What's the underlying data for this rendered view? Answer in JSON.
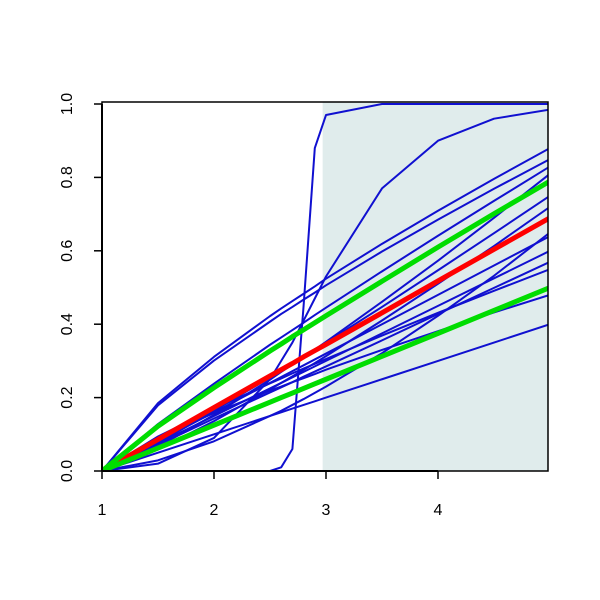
{
  "chart_data": {
    "type": "line",
    "x": [
      1,
      1.5,
      2,
      2.5,
      2.6,
      2.7,
      2.8,
      2.9,
      3,
      3.5,
      4,
      4.5,
      5
    ],
    "xlim": [
      1,
      5
    ],
    "xticks": [
      1,
      2,
      3,
      4
    ],
    "ylim": [
      0,
      1
    ],
    "yticks": [
      {
        "value": 0,
        "label": "0.0"
      },
      0.2,
      0.4,
      0.6,
      0.8,
      {
        "value": 1,
        "label": "1.0"
      }
    ],
    "shade": {
      "xlim": [
        2.97,
        5
      ],
      "color": "#e0ecec"
    },
    "series": [
      {
        "color": "#1010d0",
        "width": 2,
        "values": [
          0,
          0,
          0,
          0,
          0.01,
          0.06,
          0.45,
          0.88,
          0.97,
          1,
          1,
          1,
          1
        ]
      },
      {
        "color": "#1010d0",
        "width": 2,
        "values": [
          0,
          0.02,
          0.09,
          0.25,
          0.3,
          0.35,
          0.41,
          0.47,
          0.53,
          0.77,
          0.9,
          0.96,
          0.985
        ]
      },
      {
        "color": "#1010d0",
        "width": 2,
        "values": [
          0,
          0.185,
          0.311,
          0.422,
          0.443,
          0.463,
          0.483,
          0.503,
          0.524,
          0.619,
          0.709,
          0.796,
          0.88
        ]
      },
      {
        "color": "#1010d0",
        "width": 2,
        "values": [
          0,
          0.179,
          0.301,
          0.407,
          0.428,
          0.447,
          0.467,
          0.486,
          0.506,
          0.598,
          0.685,
          0.769,
          0.85
        ]
      },
      {
        "color": "#1010d0",
        "width": 2,
        "values": [
          0,
          0.128,
          0.238,
          0.344,
          0.364,
          0.384,
          0.404,
          0.425,
          0.445,
          0.544,
          0.641,
          0.736,
          0.83
        ]
      },
      {
        "color": "#1010d0",
        "width": 2,
        "values": [
          0,
          0.066,
          0.153,
          0.249,
          0.27,
          0.29,
          0.311,
          0.331,
          0.352,
          0.461,
          0.573,
          0.69,
          0.81
        ]
      },
      {
        "color": "#1010d0",
        "width": 2,
        "values": [
          0,
          0.076,
          0.164,
          0.255,
          0.274,
          0.293,
          0.311,
          0.331,
          0.35,
          0.447,
          0.547,
          0.648,
          0.75
        ]
      },
      {
        "color": "#1010d0",
        "width": 2,
        "values": [
          0,
          0.059,
          0.136,
          0.222,
          0.24,
          0.258,
          0.276,
          0.294,
          0.313,
          0.41,
          0.51,
          0.613,
          0.72
        ]
      },
      {
        "color": "#1010d0",
        "width": 2,
        "values": [
          0,
          0.029,
          0.081,
          0.15,
          0.164,
          0.18,
          0.196,
          0.213,
          0.23,
          0.321,
          0.423,
          0.532,
          0.65
        ]
      },
      {
        "color": "#1010d0",
        "width": 2,
        "values": [
          0,
          0.08,
          0.16,
          0.24,
          0.256,
          0.272,
          0.288,
          0.304,
          0.32,
          0.4,
          0.48,
          0.56,
          0.64
        ]
      },
      {
        "color": "#1010d0",
        "width": 2,
        "values": [
          0,
          0.075,
          0.15,
          0.225,
          0.24,
          0.255,
          0.27,
          0.285,
          0.3,
          0.375,
          0.45,
          0.525,
          0.6
        ]
      },
      {
        "color": "#1010d0",
        "width": 2,
        "values": [
          0,
          0.071,
          0.143,
          0.214,
          0.228,
          0.242,
          0.257,
          0.271,
          0.285,
          0.356,
          0.428,
          0.499,
          0.57
        ]
      },
      {
        "color": "#1010d0",
        "width": 2,
        "values": [
          0,
          0.094,
          0.169,
          0.239,
          0.252,
          0.266,
          0.279,
          0.292,
          0.305,
          0.369,
          0.431,
          0.491,
          0.55
        ]
      },
      {
        "color": "#1010d0",
        "width": 2,
        "values": [
          0,
          0.091,
          0.158,
          0.219,
          0.23,
          0.242,
          0.253,
          0.264,
          0.276,
          0.33,
          0.381,
          0.432,
          0.48
        ]
      },
      {
        "color": "#1010d0",
        "width": 2,
        "values": [
          0,
          0.05,
          0.1,
          0.15,
          0.16,
          0.17,
          0.18,
          0.19,
          0.2,
          0.25,
          0.3,
          0.35,
          0.4
        ]
      },
      {
        "color": "#ff0000",
        "width": 5,
        "values": [
          0,
          0.086,
          0.173,
          0.259,
          0.276,
          0.293,
          0.311,
          0.328,
          0.345,
          0.431,
          0.518,
          0.604,
          0.69
        ]
      },
      {
        "color": "#00dd00",
        "width": 5,
        "values": [
          0,
          0.122,
          0.227,
          0.327,
          0.346,
          0.366,
          0.385,
          0.404,
          0.423,
          0.517,
          0.61,
          0.701,
          0.79
        ]
      },
      {
        "color": "#00dd00",
        "width": 5,
        "values": [
          0,
          0.0625,
          0.125,
          0.1875,
          0.2,
          0.2125,
          0.225,
          0.2375,
          0.25,
          0.3125,
          0.375,
          0.4375,
          0.5
        ]
      }
    ]
  }
}
